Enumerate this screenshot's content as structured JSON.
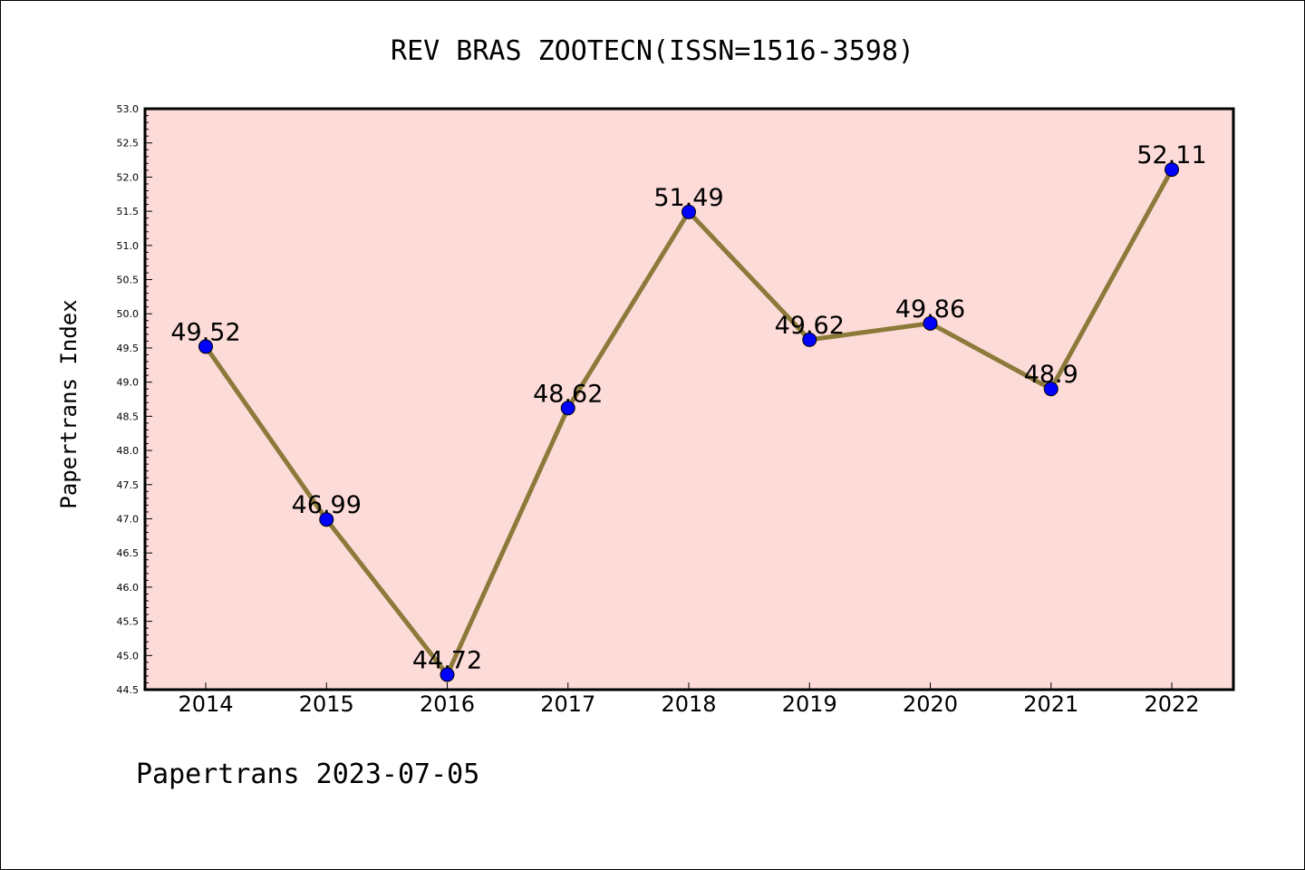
{
  "chart_data": {
    "type": "line",
    "title": "REV BRAS ZOOTECN(ISSN=1516-3598)",
    "ylabel": "Papertrans Index",
    "xlabel": "",
    "x": [
      "2014",
      "2015",
      "2016",
      "2017",
      "2018",
      "2019",
      "2020",
      "2021",
      "2022"
    ],
    "values": [
      49.52,
      46.99,
      44.72,
      48.62,
      51.49,
      49.62,
      49.86,
      48.9,
      52.11
    ],
    "labels": [
      "49.52",
      "46.99",
      "44.72",
      "48.62",
      "51.49",
      "49.62",
      "49.86",
      "48.9",
      "52.11"
    ],
    "ylim": [
      44.5,
      53.0
    ],
    "yticks": [
      "44.5",
      "45.0",
      "45.5",
      "46.0",
      "46.5",
      "47.0",
      "47.5",
      "48.0",
      "48.5",
      "49.0",
      "49.5",
      "50.0",
      "50.5",
      "51.0",
      "51.5",
      "52.0",
      "52.5",
      "53.0"
    ],
    "grid": false,
    "colors": {
      "plot_background": "#fddbd8",
      "line": "#8b7a3a",
      "marker": "#0000ff"
    }
  },
  "footer": "Papertrans 2023-07-05"
}
